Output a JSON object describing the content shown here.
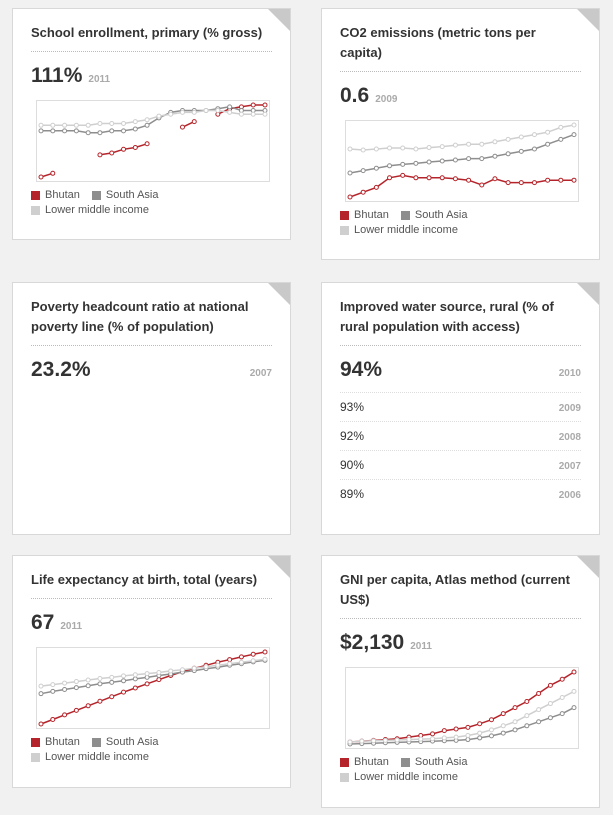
{
  "cards": [
    {
      "title": "School enrollment, primary (% gross)",
      "value": "111%",
      "year": "2011",
      "chart": {
        "type": "line",
        "series": [
          {
            "name": "Bhutan",
            "color": "#b5242a",
            "values": [
              72,
              74,
              null,
              null,
              null,
              84,
              85,
              87,
              88,
              90,
              null,
              null,
              99,
              102,
              null,
              106,
              109,
              110,
              111,
              111
            ]
          },
          {
            "name": "South Asia",
            "color": "#8e8e8e",
            "values": [
              97,
              97,
              97,
              97,
              96,
              96,
              97,
              97,
              98,
              100,
              104,
              107,
              108,
              108,
              108,
              109,
              110,
              108,
              108,
              108
            ]
          },
          {
            "name": "Lower middle income",
            "color": "#cfcfcf",
            "values": [
              100,
              100,
              100,
              100,
              100,
              101,
              101,
              101,
              102,
              103,
              105,
              106,
              107,
              107,
              108,
              108,
              107,
              106,
              106,
              106
            ]
          }
        ]
      }
    },
    {
      "title": "CO2 emissions (metric tons per capita)",
      "value": "0.6",
      "year": "2009",
      "chart": {
        "type": "line",
        "series": [
          {
            "name": "Bhutan",
            "color": "#b5242a",
            "values": [
              0.2,
              0.3,
              0.4,
              0.6,
              0.65,
              0.6,
              0.6,
              0.6,
              0.58,
              0.55,
              0.45,
              0.58,
              0.5,
              0.5,
              0.5,
              0.55,
              0.55,
              0.55
            ]
          },
          {
            "name": "South Asia",
            "color": "#8e8e8e",
            "values": [
              0.7,
              0.75,
              0.8,
              0.85,
              0.88,
              0.9,
              0.93,
              0.95,
              0.97,
              1.0,
              1.0,
              1.05,
              1.1,
              1.15,
              1.2,
              1.3,
              1.4,
              1.5
            ]
          },
          {
            "name": "Lower middle income",
            "color": "#cfcfcf",
            "values": [
              1.2,
              1.18,
              1.2,
              1.22,
              1.22,
              1.2,
              1.23,
              1.25,
              1.28,
              1.3,
              1.3,
              1.35,
              1.4,
              1.45,
              1.5,
              1.55,
              1.65,
              1.7
            ]
          }
        ]
      }
    },
    {
      "title": "Poverty headcount ratio at national poverty line (% of population)",
      "value": "23.2%",
      "year": "2007"
    },
    {
      "title": "Improved water source, rural (% of rural population with access)",
      "value": "94%",
      "year": "2010",
      "rows": [
        {
          "value": "93%",
          "year": "2009"
        },
        {
          "value": "92%",
          "year": "2008"
        },
        {
          "value": "90%",
          "year": "2007"
        },
        {
          "value": "89%",
          "year": "2006"
        }
      ]
    },
    {
      "title": "Life expectancy at birth, total (years)",
      "value": "67",
      "year": "2011",
      "chart": {
        "type": "line",
        "series": [
          {
            "name": "Bhutan",
            "color": "#b5242a",
            "values": [
              48,
              49.2,
              50.4,
              51.6,
              52.8,
              54,
              55.2,
              56.4,
              57.5,
              58.6,
              59.7,
              60.8,
              61.8,
              62.7,
              63.5,
              64.3,
              65,
              65.7,
              66.4,
              67
            ]
          },
          {
            "name": "South Asia",
            "color": "#8e8e8e",
            "values": [
              56,
              56.6,
              57.1,
              57.6,
              58.1,
              58.6,
              59,
              59.4,
              59.9,
              60.3,
              60.8,
              61.2,
              61.7,
              62.1,
              62.6,
              63,
              63.5,
              63.9,
              64.4,
              64.8
            ]
          },
          {
            "name": "Lower middle income",
            "color": "#cfcfcf",
            "values": [
              58,
              58.4,
              58.8,
              59.2,
              59.6,
              60,
              60.3,
              60.7,
              61,
              61.3,
              61.6,
              62,
              62.3,
              62.7,
              63.1,
              63.5,
              63.9,
              64.3,
              64.7,
              65.1
            ]
          }
        ]
      }
    },
    {
      "title": "GNI per capita, Atlas method (current US$)",
      "value": "$2,130",
      "year": "2011",
      "chart": {
        "type": "line",
        "series": [
          {
            "name": "Bhutan",
            "color": "#b5242a",
            "values": [
              400,
              420,
              440,
              460,
              480,
              520,
              560,
              600,
              680,
              720,
              760,
              850,
              950,
              1100,
              1250,
              1400,
              1600,
              1800,
              1950,
              2130
            ]
          },
          {
            "name": "South Asia",
            "color": "#8e8e8e",
            "values": [
              350,
              360,
              370,
              380,
              390,
              400,
              410,
              420,
              430,
              440,
              460,
              500,
              550,
              620,
              700,
              800,
              900,
              1000,
              1100,
              1250
            ]
          },
          {
            "name": "Lower middle income",
            "color": "#cfcfcf",
            "values": [
              400,
              420,
              430,
              440,
              450,
              460,
              470,
              480,
              500,
              520,
              560,
              620,
              700,
              800,
              900,
              1050,
              1200,
              1350,
              1500,
              1650
            ]
          }
        ]
      }
    }
  ]
}
